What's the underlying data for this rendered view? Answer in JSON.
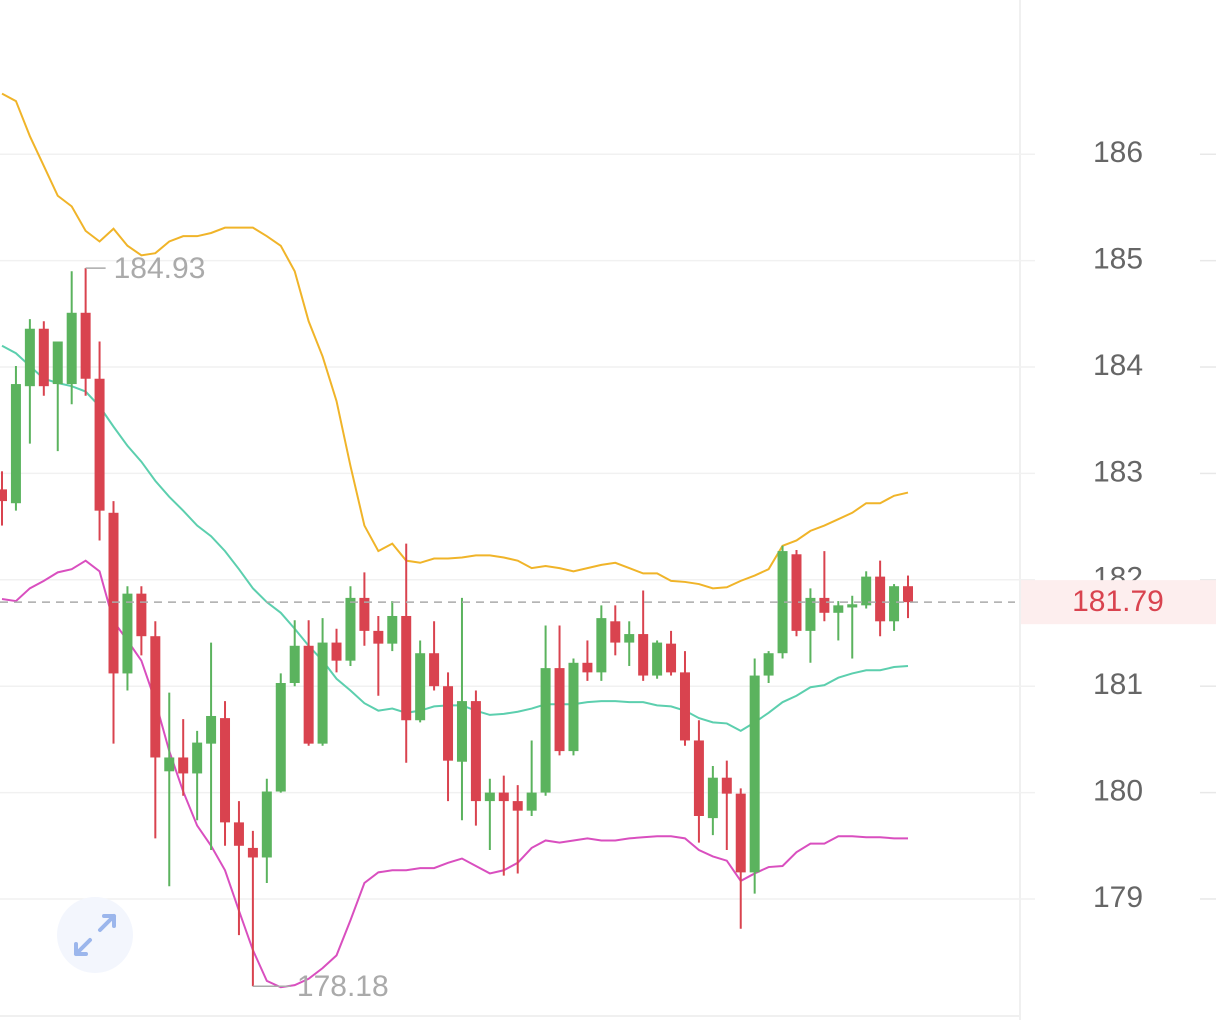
{
  "chart_data": {
    "type": "candlestick",
    "ylim": [
      177.9,
      187.45
    ],
    "yticks": [
      179,
      180,
      181,
      182,
      183,
      184,
      185,
      186
    ],
    "grid": true,
    "up_color": "#5bb35e",
    "down_color": "#d9434f",
    "open": [
      182.85,
      182.72,
      183.82,
      184.36,
      183.84,
      183.84,
      184.51,
      183.89,
      182.63,
      181.12,
      181.87,
      181.47,
      180.2,
      180.33,
      180.18,
      180.46,
      180.7,
      179.72,
      179.48,
      179.39,
      180.01,
      181.03,
      181.38,
      180.46,
      181.41,
      181.24,
      181.83,
      181.52,
      181.4,
      181.66,
      180.68,
      181.31,
      181.0,
      180.29,
      180.86,
      179.92,
      180.0,
      179.92,
      179.83,
      180.0,
      181.17,
      180.39,
      181.22,
      181.13,
      181.61,
      181.41,
      181.49,
      181.1,
      181.4,
      181.13,
      180.49,
      179.76,
      180.14,
      179.99,
      179.25,
      181.1,
      181.31,
      182.24,
      181.52,
      181.83,
      181.69,
      181.74,
      181.76,
      182.03,
      181.61,
      181.94
    ],
    "high": [
      183.02,
      184.01,
      184.45,
      184.43,
      184.24,
      184.9,
      184.93,
      184.24,
      182.74,
      181.94,
      181.94,
      181.61,
      180.94,
      180.69,
      180.58,
      181.41,
      180.86,
      179.92,
      179.64,
      180.13,
      181.12,
      181.62,
      181.62,
      181.64,
      181.54,
      181.94,
      182.07,
      181.66,
      181.8,
      182.34,
      181.43,
      181.61,
      181.13,
      181.83,
      180.96,
      180.13,
      180.16,
      180.07,
      180.49,
      181.57,
      181.57,
      181.26,
      181.43,
      181.76,
      181.76,
      181.61,
      181.9,
      181.43,
      181.52,
      181.33,
      180.68,
      180.25,
      180.3,
      180.04,
      181.26,
      181.33,
      182.32,
      182.28,
      181.92,
      182.27,
      181.8,
      181.85,
      182.08,
      182.18,
      181.96,
      182.04
    ],
    "low": [
      182.51,
      182.65,
      183.28,
      183.73,
      183.21,
      183.65,
      183.73,
      182.37,
      180.46,
      180.96,
      181.29,
      179.57,
      179.12,
      179.97,
      179.74,
      179.46,
      179.5,
      178.66,
      178.18,
      179.15,
      180.0,
      181.0,
      180.44,
      180.44,
      181.13,
      181.19,
      181.38,
      180.91,
      181.33,
      180.28,
      180.66,
      180.96,
      179.92,
      179.74,
      179.69,
      179.46,
      179.22,
      179.24,
      179.78,
      179.97,
      180.35,
      180.35,
      181.05,
      181.05,
      181.29,
      181.19,
      181.05,
      181.07,
      181.1,
      180.44,
      179.53,
      179.6,
      179.46,
      178.72,
      179.05,
      181.03,
      181.26,
      181.47,
      181.22,
      181.61,
      181.43,
      181.26,
      181.73,
      181.47,
      181.52,
      181.64
    ],
    "close": [
      182.74,
      183.84,
      184.36,
      183.82,
      184.24,
      184.51,
      183.89,
      182.65,
      181.12,
      181.87,
      181.47,
      180.33,
      180.33,
      180.18,
      180.47,
      180.72,
      179.72,
      179.5,
      179.39,
      180.01,
      181.03,
      181.38,
      180.46,
      181.41,
      181.24,
      181.83,
      181.52,
      181.4,
      181.66,
      180.68,
      181.31,
      181.0,
      180.3,
      180.86,
      179.92,
      180.0,
      179.92,
      179.83,
      180.0,
      181.17,
      180.39,
      181.22,
      181.13,
      181.64,
      181.41,
      181.49,
      181.1,
      181.41,
      181.13,
      180.49,
      179.78,
      180.14,
      179.99,
      179.25,
      181.1,
      181.31,
      182.27,
      181.52,
      181.83,
      181.69,
      181.76,
      181.77,
      182.03,
      181.61,
      181.94,
      181.79
    ],
    "bands": [
      {
        "color": "#f0b429",
        "values": [
          186.57,
          186.5,
          186.17,
          185.89,
          185.61,
          185.51,
          185.28,
          185.18,
          185.3,
          185.14,
          185.05,
          185.07,
          185.18,
          185.23,
          185.23,
          185.26,
          185.31,
          185.31,
          185.31,
          185.23,
          185.14,
          184.9,
          184.43,
          184.1,
          183.68,
          183.07,
          182.51,
          182.27,
          182.34,
          182.18,
          182.16,
          182.2,
          182.2,
          182.21,
          182.23,
          182.23,
          182.21,
          182.18,
          182.11,
          182.13,
          182.11,
          182.08,
          182.11,
          182.14,
          182.16,
          182.11,
          182.06,
          182.06,
          181.99,
          181.98,
          181.96,
          181.92,
          181.93,
          181.99,
          182.04,
          182.1,
          182.32,
          182.37,
          182.46,
          182.51,
          182.57,
          182.63,
          182.72,
          182.72,
          182.79,
          182.82
        ]
      },
      {
        "color": "#5ccfae",
        "values": [
          184.2,
          184.13,
          184.01,
          183.89,
          183.85,
          183.82,
          183.77,
          183.63,
          183.44,
          183.26,
          183.11,
          182.93,
          182.78,
          182.65,
          182.51,
          182.41,
          182.27,
          182.1,
          181.92,
          181.79,
          181.69,
          181.54,
          181.38,
          181.24,
          181.07,
          180.96,
          180.84,
          180.77,
          180.79,
          180.75,
          180.77,
          180.81,
          180.82,
          180.82,
          180.77,
          180.73,
          180.74,
          180.76,
          180.79,
          180.83,
          180.83,
          180.83,
          180.85,
          180.86,
          180.86,
          180.85,
          180.85,
          180.82,
          180.81,
          180.77,
          180.7,
          180.66,
          180.65,
          180.58,
          180.66,
          180.75,
          180.85,
          180.91,
          180.99,
          181.01,
          181.08,
          181.12,
          181.15,
          181.15,
          181.18,
          181.19
        ]
      },
      {
        "color": "#d94fbf",
        "values": [
          181.82,
          181.8,
          181.92,
          181.99,
          182.07,
          182.1,
          182.18,
          182.08,
          181.61,
          181.43,
          181.24,
          180.86,
          180.39,
          180.01,
          179.69,
          179.5,
          179.27,
          178.89,
          178.52,
          178.23,
          178.17,
          178.19,
          178.25,
          178.35,
          178.47,
          178.8,
          179.15,
          179.25,
          179.27,
          179.27,
          179.29,
          179.29,
          179.34,
          179.38,
          179.31,
          179.24,
          179.27,
          179.34,
          179.48,
          179.55,
          179.53,
          179.55,
          179.57,
          179.55,
          179.55,
          179.57,
          179.58,
          179.59,
          179.59,
          179.57,
          179.46,
          179.4,
          179.36,
          179.17,
          179.24,
          179.3,
          179.31,
          179.44,
          179.52,
          179.52,
          179.59,
          179.59,
          179.58,
          179.58,
          179.57,
          179.57
        ]
      }
    ]
  }
}
